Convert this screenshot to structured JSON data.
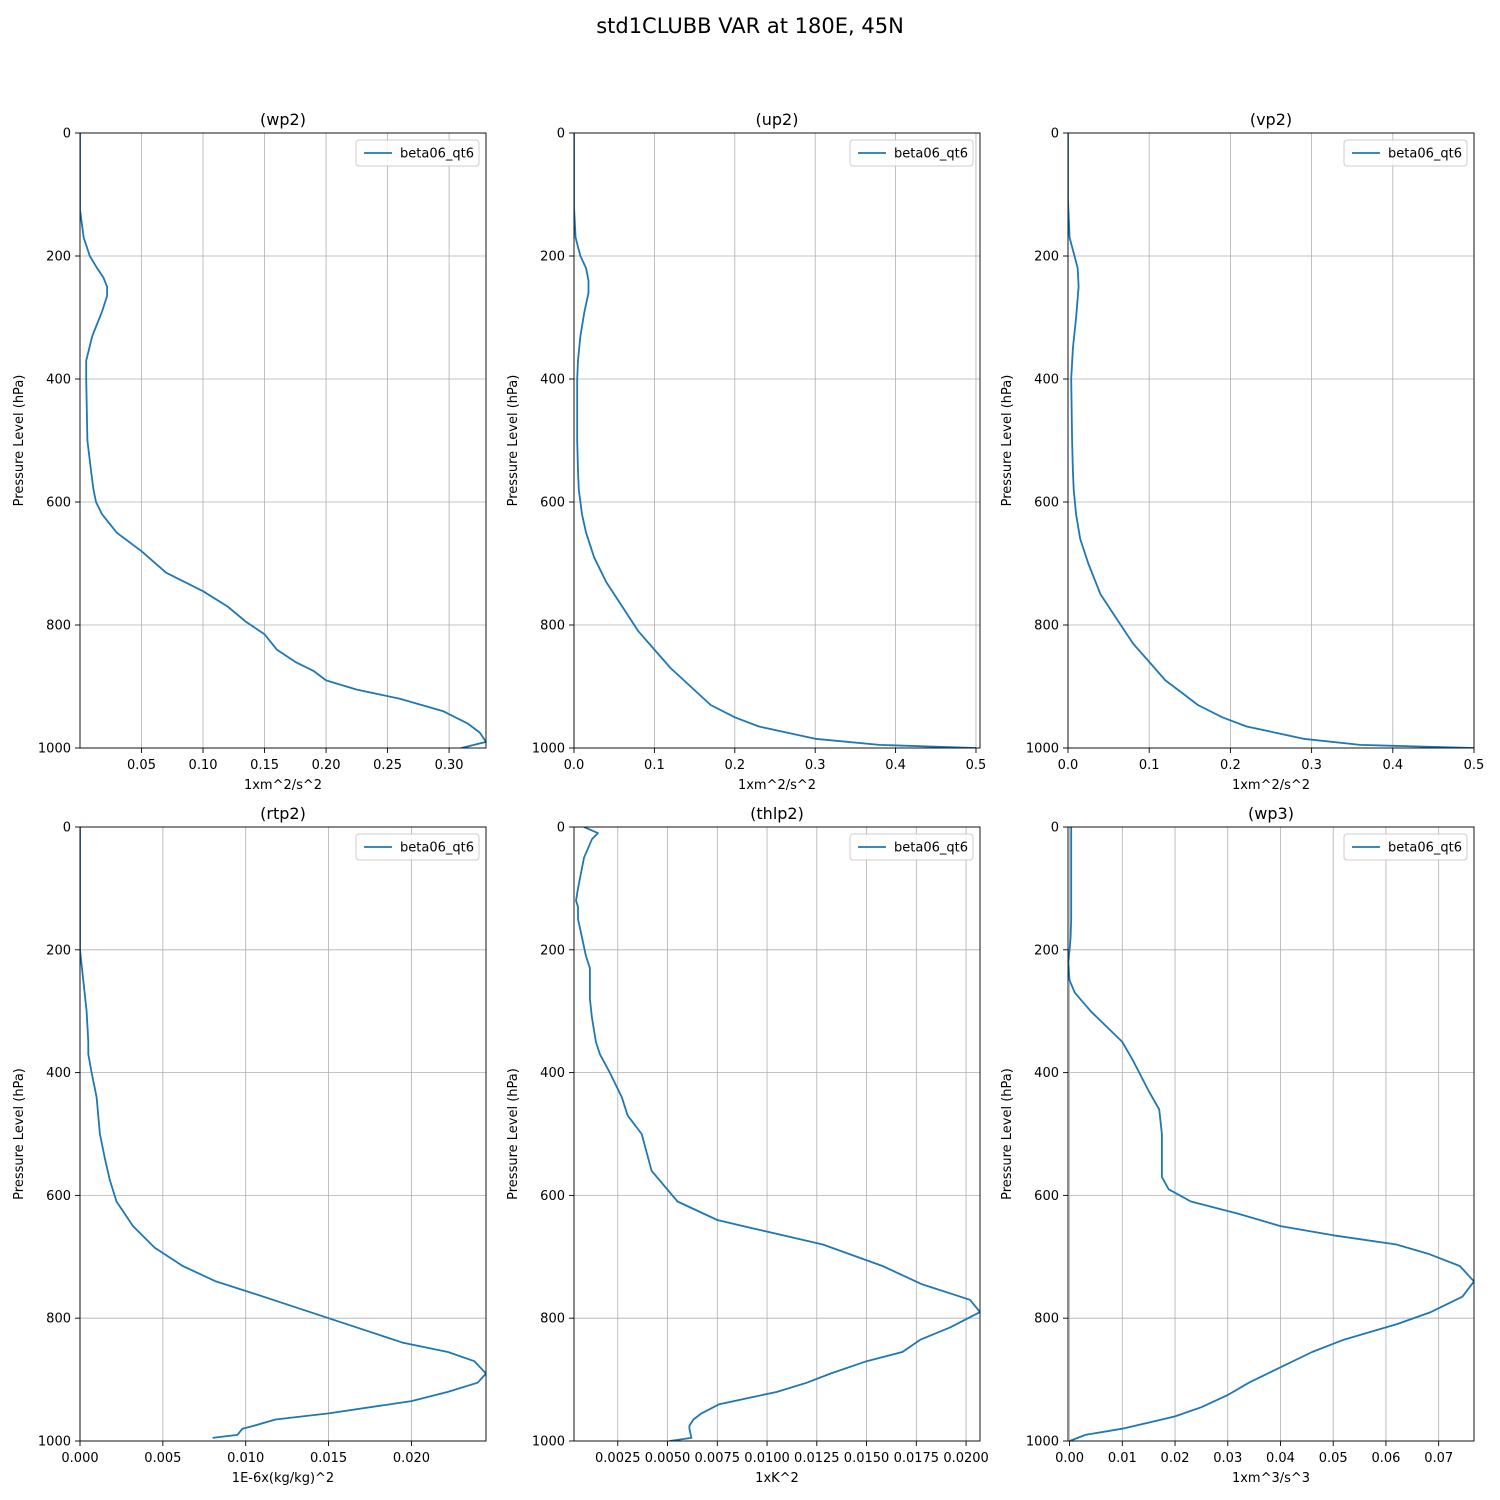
{
  "figure": {
    "suptitle": "std1CLUBB VAR at 180E, 45N"
  },
  "colors": {
    "line": "#1f77b4",
    "grid": "#b0b0b0",
    "axis": "#000000"
  },
  "chart_data": [
    {
      "type": "line",
      "title": "(wp2)",
      "xlabel": "1xm^2/s^2",
      "ylabel": "Pressure Level (hPa)",
      "xlim": [
        0,
        0.33
      ],
      "ylim": [
        1000,
        0
      ],
      "xticks": [
        0.05,
        0.1,
        0.15,
        0.2,
        0.25,
        0.3
      ],
      "xtick_labels": [
        "0.05",
        "0.10",
        "0.15",
        "0.20",
        "0.25",
        "0.30"
      ],
      "yticks": [
        0,
        200,
        400,
        600,
        800,
        1000
      ],
      "ytick_labels": [
        "0",
        "200",
        "400",
        "600",
        "800",
        "1000"
      ],
      "grid": true,
      "legend": "top-right",
      "series": [
        {
          "name": "beta06_qt6",
          "x": [
            0.0,
            0.0,
            0.003,
            0.008,
            0.014,
            0.019,
            0.022,
            0.022,
            0.018,
            0.01,
            0.005,
            0.005,
            0.006,
            0.009,
            0.011,
            0.013,
            0.018,
            0.03,
            0.05,
            0.07,
            0.1,
            0.12,
            0.135,
            0.15,
            0.16,
            0.175,
            0.19,
            0.2,
            0.225,
            0.26,
            0.295,
            0.315,
            0.325,
            0.33,
            0.31
          ],
          "y": [
            0,
            125,
            170,
            200,
            220,
            235,
            250,
            265,
            290,
            330,
            370,
            400,
            500,
            550,
            580,
            600,
            620,
            650,
            680,
            715,
            745,
            770,
            795,
            815,
            840,
            860,
            875,
            890,
            905,
            920,
            940,
            960,
            975,
            990,
            1000
          ]
        }
      ]
    },
    {
      "type": "line",
      "title": "(up2)",
      "xlabel": "1xm^2/s^2",
      "ylabel": "Pressure Level (hPa)",
      "xlim": [
        0,
        0.505
      ],
      "ylim": [
        1000,
        0
      ],
      "xticks": [
        0.0,
        0.1,
        0.2,
        0.3,
        0.4,
        0.5
      ],
      "xtick_labels": [
        "0.0",
        "0.1",
        "0.2",
        "0.3",
        "0.4",
        "0.5"
      ],
      "yticks": [
        0,
        200,
        400,
        600,
        800,
        1000
      ],
      "ytick_labels": [
        "0",
        "200",
        "400",
        "600",
        "800",
        "1000"
      ],
      "grid": true,
      "legend": "top-right",
      "series": [
        {
          "name": "beta06_qt6",
          "x": [
            0.0,
            0.0,
            0.002,
            0.008,
            0.015,
            0.018,
            0.018,
            0.013,
            0.008,
            0.005,
            0.004,
            0.004,
            0.005,
            0.006,
            0.01,
            0.015,
            0.025,
            0.04,
            0.06,
            0.08,
            0.1,
            0.12,
            0.145,
            0.17,
            0.2,
            0.23,
            0.265,
            0.3,
            0.38,
            0.5
          ],
          "y": [
            0,
            120,
            170,
            200,
            220,
            240,
            260,
            290,
            330,
            370,
            400,
            500,
            550,
            580,
            620,
            650,
            690,
            730,
            770,
            810,
            840,
            870,
            900,
            930,
            950,
            965,
            975,
            985,
            995,
            1000
          ]
        }
      ]
    },
    {
      "type": "line",
      "title": "(vp2)",
      "xlabel": "1xm^2/s^2",
      "ylabel": "Pressure Level (hPa)",
      "xlim": [
        0,
        0.5
      ],
      "ylim": [
        1000,
        0
      ],
      "xticks": [
        0.0,
        0.1,
        0.2,
        0.3,
        0.4,
        0.5
      ],
      "xtick_labels": [
        "0.0",
        "0.1",
        "0.2",
        "0.3",
        "0.4",
        "0.5"
      ],
      "yticks": [
        0,
        200,
        400,
        600,
        800,
        1000
      ],
      "ytick_labels": [
        "0",
        "200",
        "400",
        "600",
        "800",
        "1000"
      ],
      "grid": true,
      "legend": "top-right",
      "series": [
        {
          "name": "beta06_qt6",
          "x": [
            0.0,
            0.0,
            0.002,
            0.008,
            0.012,
            0.013,
            0.01,
            0.006,
            0.004,
            0.005,
            0.006,
            0.007,
            0.01,
            0.015,
            0.025,
            0.04,
            0.06,
            0.08,
            0.1,
            0.12,
            0.14,
            0.16,
            0.19,
            0.22,
            0.255,
            0.29,
            0.36,
            0.5
          ],
          "y": [
            0,
            110,
            170,
            200,
            220,
            250,
            300,
            350,
            400,
            500,
            550,
            580,
            620,
            660,
            700,
            750,
            790,
            830,
            860,
            890,
            910,
            930,
            950,
            965,
            975,
            985,
            995,
            1000
          ]
        }
      ]
    },
    {
      "type": "line",
      "title": "(rtp2)",
      "xlabel": "1E-6x(kg/kg)^2",
      "ylabel": "Pressure Level (hPa)",
      "xlim": [
        0,
        0.0245
      ],
      "ylim": [
        1000,
        0
      ],
      "xticks": [
        0.0,
        0.005,
        0.01,
        0.015,
        0.02
      ],
      "xtick_labels": [
        "0.000",
        "0.005",
        "0.010",
        "0.015",
        "0.020"
      ],
      "yticks": [
        0,
        200,
        400,
        600,
        800,
        1000
      ],
      "ytick_labels": [
        "0",
        "200",
        "400",
        "600",
        "800",
        "1000"
      ],
      "grid": true,
      "legend": "top-right",
      "series": [
        {
          "name": "beta06_qt6",
          "x": [
            0.0,
            0.0,
            0.0002,
            0.0004,
            0.0005,
            0.0005,
            0.0007,
            0.001,
            0.0012,
            0.0015,
            0.0018,
            0.0022,
            0.0032,
            0.0045,
            0.0062,
            0.0082,
            0.0105,
            0.015,
            0.0195,
            0.0222,
            0.0238,
            0.0245,
            0.024,
            0.0222,
            0.02,
            0.015,
            0.0118,
            0.0105,
            0.0098,
            0.0095,
            0.008
          ],
          "y": [
            0,
            200,
            250,
            300,
            350,
            370,
            400,
            440,
            500,
            540,
            575,
            610,
            650,
            685,
            715,
            740,
            760,
            800,
            840,
            855,
            870,
            890,
            905,
            920,
            935,
            955,
            965,
            975,
            980,
            990,
            995
          ]
        }
      ]
    },
    {
      "type": "line",
      "title": "(thlp2)",
      "xlabel": "1xK^2",
      "ylabel": "Pressure Level (hPa)",
      "xlim": [
        0.0003,
        0.0207
      ],
      "ylim": [
        1000,
        0
      ],
      "xticks": [
        0.0025,
        0.005,
        0.0075,
        0.01,
        0.0125,
        0.015,
        0.0175,
        0.02
      ],
      "xtick_labels": [
        "0.0025",
        "0.0050",
        "0.0075",
        "0.0100",
        "0.0125",
        "0.0150",
        "0.0175",
        "0.0200"
      ],
      "yticks": [
        0,
        200,
        400,
        600,
        800,
        1000
      ],
      "ytick_labels": [
        "0",
        "200",
        "400",
        "600",
        "800",
        "1000"
      ],
      "grid": true,
      "legend": "top-right",
      "series": [
        {
          "name": "beta06_qt6",
          "x": [
            0.0008,
            0.0015,
            0.0012,
            0.0008,
            0.0005,
            0.0004,
            0.0005,
            0.0005,
            0.0007,
            0.0009,
            0.0011,
            0.0011,
            0.0011,
            0.0012,
            0.0014,
            0.0016,
            0.0021,
            0.0027,
            0.003,
            0.0037,
            0.0042,
            0.0055,
            0.0075,
            0.0088,
            0.0128,
            0.0158,
            0.0178,
            0.0202,
            0.0207,
            0.0192,
            0.0177,
            0.0168,
            0.015,
            0.0132,
            0.012,
            0.0105,
            0.0076,
            0.0067,
            0.0063,
            0.0061,
            0.0061,
            0.0062,
            0.0051
          ],
          "y": [
            0,
            10,
            20,
            50,
            100,
            120,
            130,
            150,
            180,
            210,
            230,
            250,
            280,
            310,
            350,
            370,
            400,
            440,
            470,
            500,
            560,
            610,
            640,
            650,
            680,
            715,
            745,
            770,
            790,
            815,
            835,
            855,
            870,
            890,
            905,
            920,
            940,
            955,
            965,
            975,
            980,
            995,
            1000
          ]
        }
      ]
    },
    {
      "type": "line",
      "title": "(wp3)",
      "xlabel": "1xm^3/s^3",
      "ylabel": "Pressure Level (hPa)",
      "xlim": [
        -0.0003,
        0.0767
      ],
      "ylim": [
        1000,
        0
      ],
      "xticks": [
        0.0,
        0.01,
        0.02,
        0.03,
        0.04,
        0.05,
        0.06,
        0.07
      ],
      "xtick_labels": [
        "0.00",
        "0.01",
        "0.02",
        "0.03",
        "0.04",
        "0.05",
        "0.06",
        "0.07"
      ],
      "yticks": [
        0,
        200,
        400,
        600,
        800,
        1000
      ],
      "ytick_labels": [
        "0",
        "200",
        "400",
        "600",
        "800",
        "1000"
      ],
      "grid": true,
      "legend": "top-right",
      "series": [
        {
          "name": "beta06_qt6",
          "x": [
            0.0003,
            0.0003,
            0.0003,
            0.0003,
            0.0002,
            0.0,
            -0.0003,
            0.0,
            0.001,
            0.004,
            0.01,
            0.012,
            0.015,
            0.017,
            0.0175,
            0.0175,
            0.0175,
            0.0188,
            0.023,
            0.032,
            0.04,
            0.05,
            0.062,
            0.068,
            0.074,
            0.0767,
            0.0745,
            0.0685,
            0.062,
            0.052,
            0.046,
            0.04,
            0.034,
            0.03,
            0.025,
            0.02,
            0.015,
            0.01,
            0.003,
            0.0
          ],
          "y": [
            0,
            100,
            130,
            150,
            180,
            200,
            220,
            250,
            270,
            300,
            350,
            380,
            430,
            460,
            500,
            530,
            570,
            590,
            610,
            630,
            650,
            665,
            680,
            695,
            715,
            740,
            765,
            790,
            810,
            835,
            855,
            880,
            905,
            925,
            945,
            960,
            970,
            980,
            990,
            1000
          ]
        }
      ]
    }
  ]
}
